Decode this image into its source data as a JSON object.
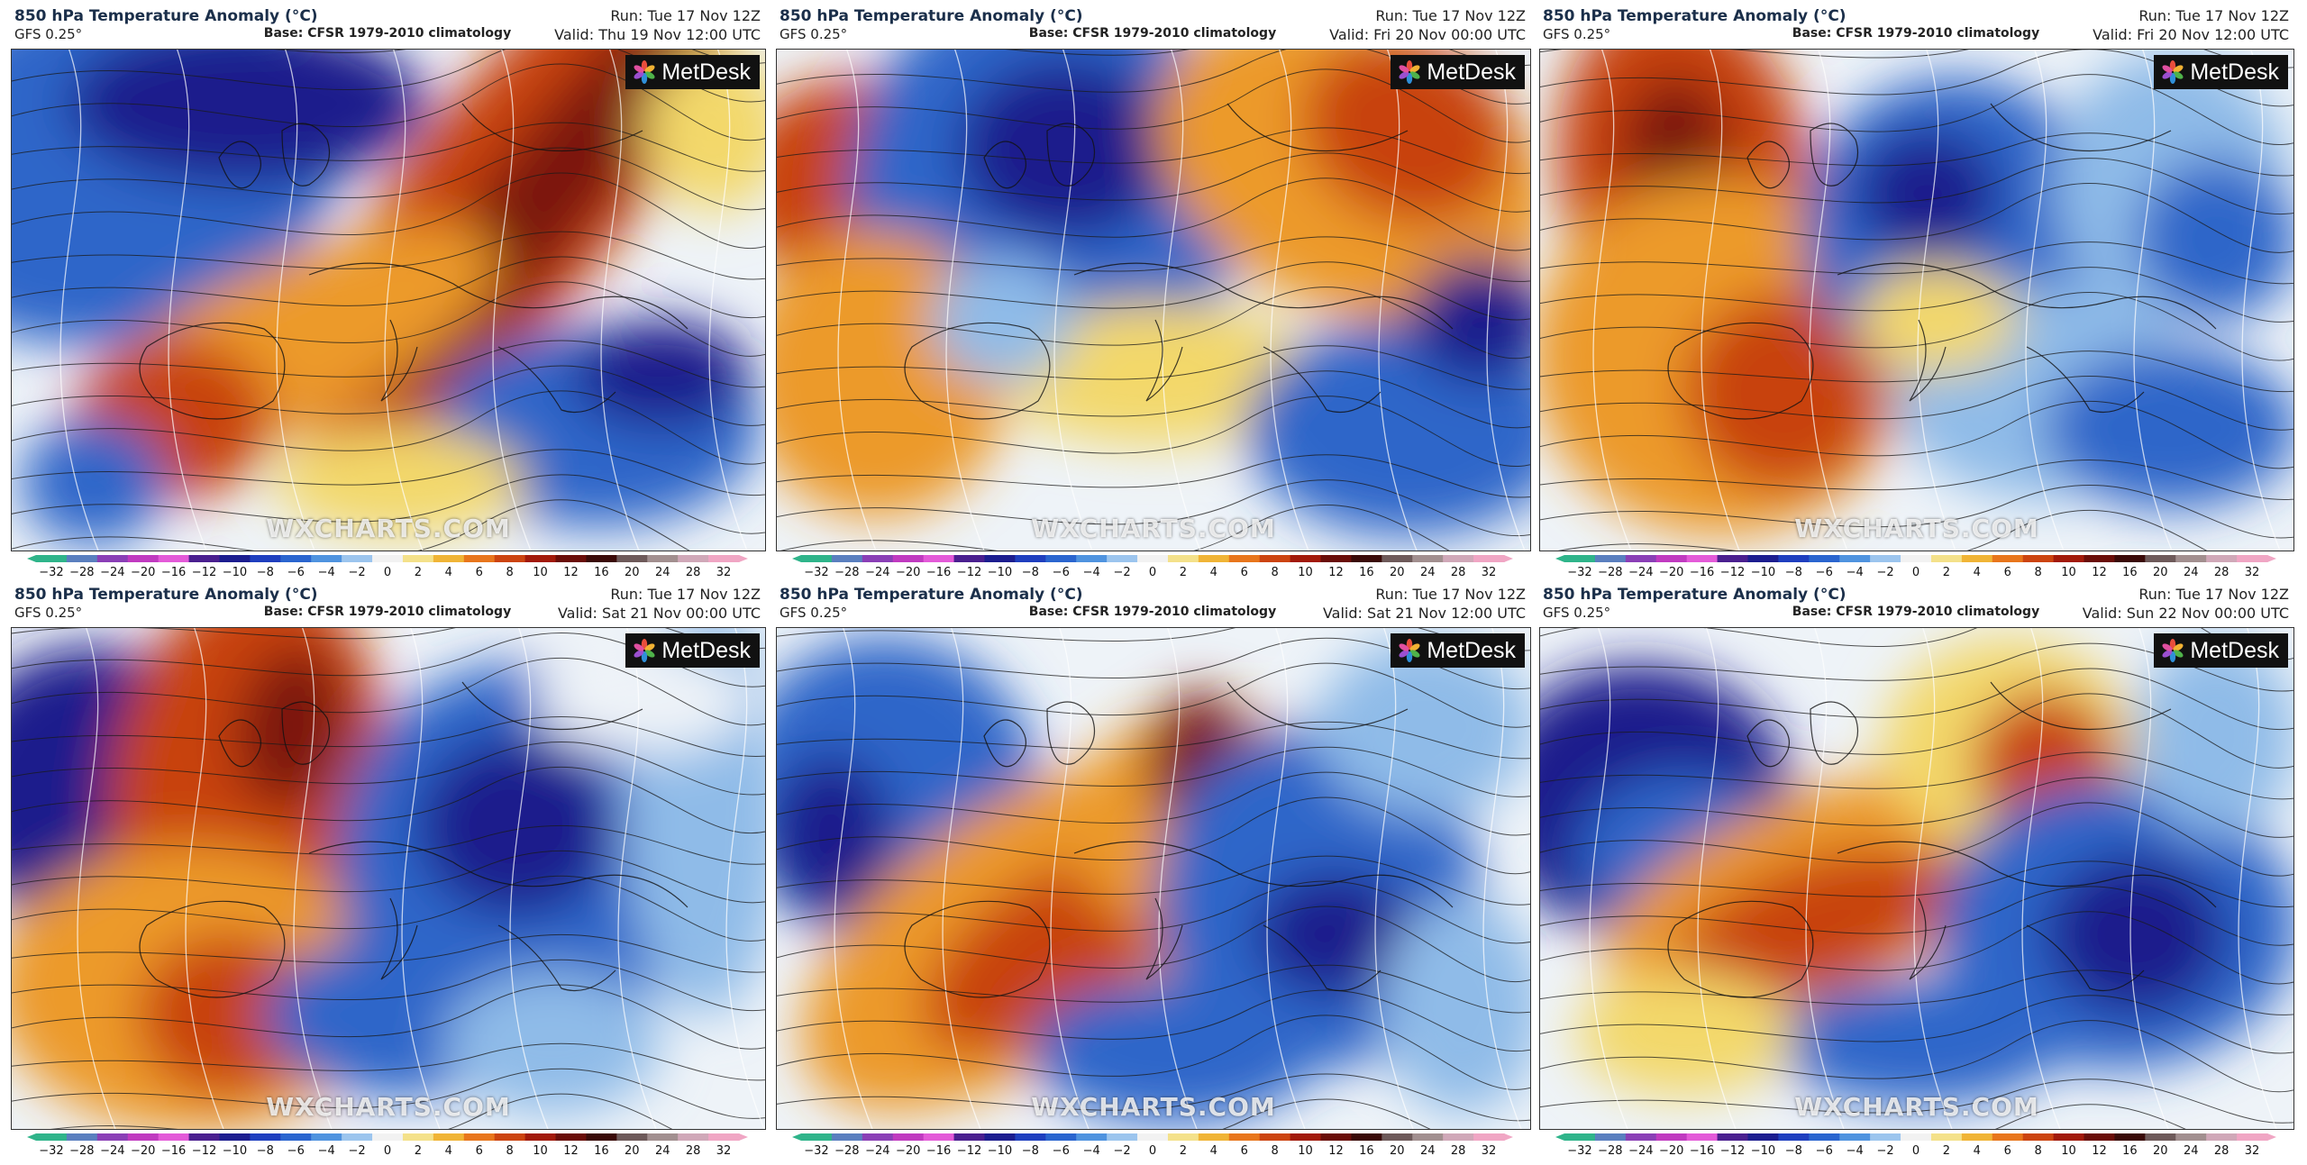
{
  "panels": [
    {
      "title": "850 hPa Temperature Anomaly (°C)",
      "model": "GFS 0.25°",
      "base": "Base: CFSR 1979-2010 climatology",
      "run": "Run: Tue 17 Nov 12Z",
      "valid": "Valid: Thu 19 Nov 12:00 UTC",
      "logo": "MetDesk",
      "watermark": "WXCHARTS.COM"
    },
    {
      "title": "850 hPa Temperature Anomaly (°C)",
      "model": "GFS 0.25°",
      "base": "Base: CFSR 1979-2010 climatology",
      "run": "Run: Tue 17 Nov 12Z",
      "valid": "Valid: Fri 20 Nov 00:00 UTC",
      "logo": "MetDesk",
      "watermark": "WXCHARTS.COM"
    },
    {
      "title": "850 hPa Temperature Anomaly (°C)",
      "model": "GFS 0.25°",
      "base": "Base: CFSR 1979-2010 climatology",
      "run": "Run: Tue 17 Nov 12Z",
      "valid": "Valid: Fri 20 Nov 12:00 UTC",
      "logo": "MetDesk",
      "watermark": "WXCHARTS.COM"
    },
    {
      "title": "850 hPa Temperature Anomaly (°C)",
      "model": "GFS 0.25°",
      "base": "Base: CFSR 1979-2010 climatology",
      "run": "Run: Tue 17 Nov 12Z",
      "valid": "Valid: Sat 21 Nov 00:00 UTC",
      "logo": "MetDesk",
      "watermark": "WXCHARTS.COM"
    },
    {
      "title": "850 hPa Temperature Anomaly (°C)",
      "model": "GFS 0.25°",
      "base": "Base: CFSR 1979-2010 climatology",
      "run": "Run: Tue 17 Nov 12Z",
      "valid": "Valid: Sat 21 Nov 12:00 UTC",
      "logo": "MetDesk",
      "watermark": "WXCHARTS.COM"
    },
    {
      "title": "850 hPa Temperature Anomaly (°C)",
      "model": "GFS 0.25°",
      "base": "Base: CFSR 1979-2010 climatology",
      "run": "Run: Tue 17 Nov 12Z",
      "valid": "Valid: Sun 22 Nov 00:00 UTC",
      "logo": "MetDesk",
      "watermark": "WXCHARTS.COM"
    }
  ],
  "colorbar": {
    "ticks": [
      "−32",
      "−28",
      "−24",
      "−20",
      "−16",
      "−12",
      "−10",
      "−8",
      "−6",
      "−4",
      "−2",
      "0",
      "2",
      "4",
      "6",
      "8",
      "10",
      "12",
      "16",
      "20",
      "24",
      "28",
      "32"
    ],
    "colors": [
      "#2fb48a",
      "#5a7fbf",
      "#8a3fb6",
      "#c03ac0",
      "#e35ad8",
      "#4a1f8f",
      "#1c1d8f",
      "#1f3fbf",
      "#2a65cf",
      "#4f93df",
      "#9cc5ee",
      "#f2f2f2",
      "#f4e18a",
      "#f0b436",
      "#e8761c",
      "#cc4410",
      "#a21a0a",
      "#6a0d08",
      "#3a0a08",
      "#6e5a5a",
      "#a28f8f",
      "#d0a8b8",
      "#f0a6c4"
    ]
  },
  "map_colors": {
    "cold_deep": "#1a1f8c",
    "cold": "#2f66c9",
    "cool": "#8fbbe8",
    "neutral": "#eef3f8",
    "mild": "#f3d86a",
    "warm": "#ec9a2c",
    "hot": "#c8420f",
    "very_hot": "#7a1208",
    "isobar": "#1a1a1a",
    "isotherm": "#ffffff"
  }
}
